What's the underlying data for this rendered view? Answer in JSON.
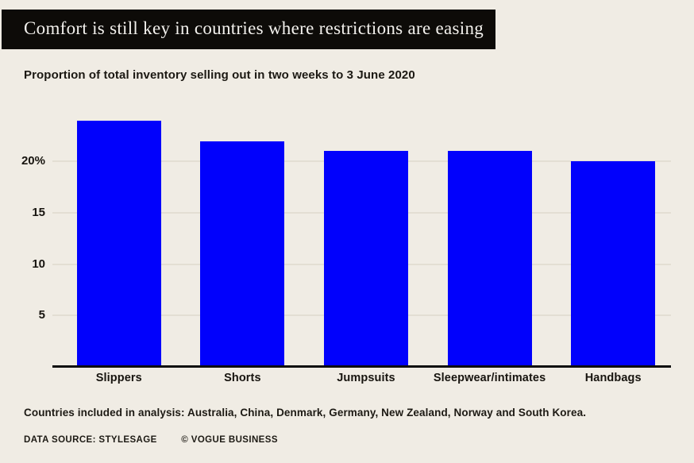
{
  "page": {
    "background_color": "#f0ece4",
    "accent_color": "#0101fc"
  },
  "header": {
    "title": "Comfort is still key in countries where restrictions are easing",
    "banner_color": "#0d0b08",
    "title_color": "#f3f1ed"
  },
  "subtitle": "Proportion of total inventory selling out in two weeks to 3 June 2020",
  "chart_data": {
    "type": "bar",
    "title": "Comfort is still key in countries where restrictions are easing",
    "subtitle": "Proportion of total inventory selling out in two weeks to 3 June 2020",
    "categories": [
      "Slippers",
      "Shorts",
      "Jumpsuits",
      "Sleepwear/intimates",
      "Handbags"
    ],
    "values": [
      24,
      22,
      21,
      21,
      20
    ],
    "unit": "%",
    "bar_color": "#0101fc",
    "gridline_color": "#e3ded3",
    "grid": true,
    "legend": false,
    "xlabel": "",
    "ylabel": "",
    "ylim": [
      0,
      24.9
    ],
    "yticks": [
      {
        "value": 5,
        "label": "5"
      },
      {
        "value": 10,
        "label": "10"
      },
      {
        "value": 15,
        "label": "15"
      },
      {
        "value": 20,
        "label": "20%"
      }
    ]
  },
  "footnote": "Countries included in analysis: Australia, China, Denmark, Germany, New Zealand, Norway and South Korea.",
  "source": {
    "data_source": "DATA SOURCE: STYLESAGE",
    "credit": "© VOGUE BUSINESS"
  }
}
